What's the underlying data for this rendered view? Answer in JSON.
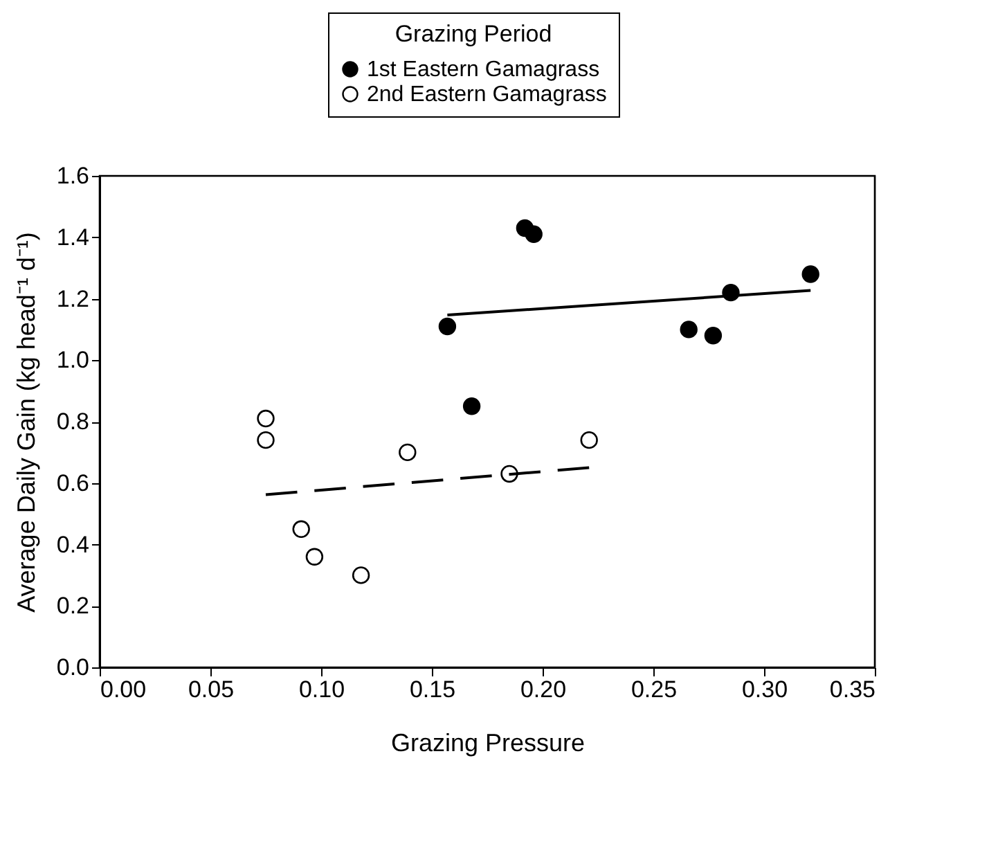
{
  "chart_data": {
    "type": "scatter",
    "xlabel": "Grazing Pressure",
    "ylabel": "Average Daily Gain (kg head⁻¹ d⁻¹)",
    "legend_title": "Grazing Period",
    "xlim": [
      0,
      0.35
    ],
    "ylim": [
      0,
      1.6
    ],
    "xticks": [
      {
        "value": 0,
        "label": "0.00"
      },
      0.05,
      {
        "value": 0.1,
        "label": "0.10"
      },
      0.15,
      {
        "value": 0.2,
        "label": "0.20"
      },
      0.25,
      {
        "value": 0.3,
        "label": "0.30"
      },
      0.35
    ],
    "yticks": [
      {
        "value": 0,
        "label": "0.0"
      },
      0.2,
      0.4,
      0.6,
      0.8,
      {
        "value": 1,
        "label": "1.0"
      },
      1.2,
      1.4,
      1.6
    ],
    "legend": "top",
    "marker": "circle",
    "grid": false,
    "series": [
      {
        "name": "1st Eastern Gamagrass",
        "color": "#000000",
        "x": [
          0.157,
          0.168,
          0.192,
          0.196,
          0.266,
          0.277,
          0.285,
          0.321
        ],
        "values": [
          1.11,
          0.85,
          1.43,
          1.41,
          1.1,
          1.08,
          1.22,
          1.28
        ]
      },
      {
        "name": "2nd Eastern Gamagrass",
        "color": "#ffffff",
        "x": [
          0.075,
          0.075,
          0.091,
          0.097,
          0.118,
          0.139,
          0.185,
          0.221
        ],
        "values": [
          0.81,
          0.74,
          0.45,
          0.36,
          0.3,
          0.7,
          0.63,
          0.74
        ]
      },
      {
        "type": "line",
        "marker": "none",
        "color": "#000000",
        "line_style": "solid",
        "x": [
          0.157,
          0.321
        ],
        "values": [
          1.147,
          1.227
        ]
      },
      {
        "type": "line",
        "marker": "none",
        "color": "#000000",
        "line_style": "dashed",
        "x": [
          0.075,
          0.221
        ],
        "values": [
          0.562,
          0.65
        ]
      }
    ]
  }
}
